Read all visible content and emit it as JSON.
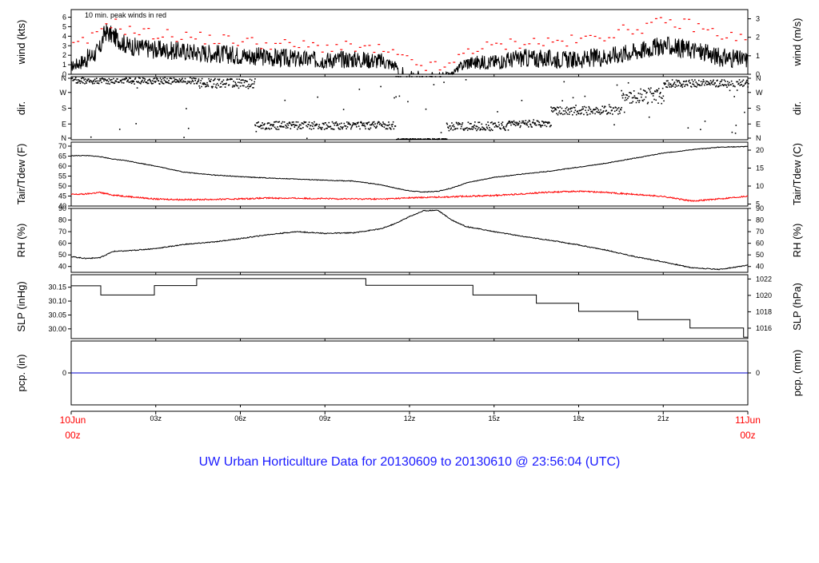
{
  "title": "UW Urban Horticulture Data for 20130609  to  20130610 @ 23:56:04  (UTC)",
  "title_color": "#1a1aff",
  "accent_red": "#ff0000",
  "xaxis": {
    "start_label": [
      "10Jun",
      "00z"
    ],
    "end_label": [
      "11Jun",
      "00z"
    ],
    "ticks": [
      "03z",
      "06z",
      "09z",
      "12z",
      "15z",
      "18z",
      "21z"
    ]
  },
  "chart_data": [
    {
      "type": "line",
      "annotation": "10 min. peak winds in red",
      "ylabel_left": "wind (kts)",
      "ylabel_right": "wind (m/s)",
      "ylim": [
        0,
        6.8
      ],
      "left_ticks": [
        0,
        1,
        2,
        3,
        4,
        5,
        6
      ],
      "right_ticks": [
        0,
        1,
        2,
        3
      ],
      "x_hours": [
        0,
        0.5,
        1,
        1.2,
        1.5,
        2,
        3,
        4,
        5,
        6,
        7,
        8,
        9,
        10,
        11,
        11.5,
        12,
        12.5,
        13,
        13.5,
        14,
        15,
        16,
        17,
        18,
        19,
        20,
        21,
        22,
        23,
        24
      ],
      "series": [
        {
          "name": "wind",
          "color": "#000000",
          "values": [
            0.8,
            1.5,
            2.5,
            4.5,
            4.0,
            3.0,
            2.6,
            2.4,
            2.2,
            2.0,
            1.8,
            1.6,
            1.5,
            1.6,
            1.4,
            0.9,
            0.3,
            0.15,
            0.1,
            0.1,
            1.2,
            1.3,
            1.7,
            1.6,
            1.5,
            1.9,
            2.4,
            3.0,
            2.6,
            1.8,
            1.5
          ]
        },
        {
          "name": "peak",
          "color": "#ff0000",
          "values": [
            2.8,
            3.4,
            4.2,
            5.6,
            5.4,
            4.6,
            4.2,
            4.0,
            3.7,
            3.5,
            3.2,
            3.0,
            2.9,
            2.8,
            2.5,
            2.0,
            1.3,
            0.9,
            0.7,
            0.8,
            2.6,
            2.9,
            3.4,
            3.4,
            3.5,
            4.2,
            4.8,
            5.4,
            5.2,
            4.2,
            3.6
          ]
        }
      ]
    },
    {
      "type": "scatter",
      "ylabel_left": "dir.",
      "ylabel_right": "dir.",
      "ylim": [
        0,
        360
      ],
      "left_ticks": [
        "N",
        "E",
        "S",
        "W",
        "N"
      ],
      "right_ticks": [
        "N",
        "E",
        "S",
        "W",
        "N"
      ],
      "segments": [
        {
          "start": 0.0,
          "end": 4.5,
          "center": 335,
          "spread": 18
        },
        {
          "start": 4.5,
          "end": 6.5,
          "center": 320,
          "spread": 28
        },
        {
          "start": 6.5,
          "end": 11.5,
          "center": 80,
          "spread": 22
        },
        {
          "start": 11.5,
          "end": 13.3,
          "center": 2,
          "spread": 3
        },
        {
          "start": 13.3,
          "end": 15.5,
          "center": 75,
          "spread": 25
        },
        {
          "start": 15.5,
          "end": 17.0,
          "center": 90,
          "spread": 20
        },
        {
          "start": 17.0,
          "end": 19.5,
          "center": 165,
          "spread": 25
        },
        {
          "start": 19.5,
          "end": 21.0,
          "center": 250,
          "spread": 45
        },
        {
          "start": 21.0,
          "end": 24.0,
          "center": 320,
          "spread": 22
        }
      ]
    },
    {
      "type": "line",
      "ylabel_left": "Tair/Tdew (F)",
      "ylabel_right": "Tair/Tdew (C)",
      "ylim": [
        40,
        72
      ],
      "left_ticks": [
        40,
        45,
        50,
        55,
        60,
        65,
        70
      ],
      "right_ticks": [
        5,
        10,
        15,
        20
      ],
      "x_hours": [
        0,
        0.5,
        1,
        1.5,
        2,
        3,
        4,
        5,
        6,
        7,
        8,
        9,
        10,
        11,
        11.5,
        12,
        12.5,
        13,
        13.5,
        14,
        15,
        16,
        17,
        18,
        19,
        20,
        21,
        22,
        23,
        24
      ],
      "series": [
        {
          "name": "Tair",
          "color": "#000000",
          "values": [
            65.2,
            65.3,
            64.8,
            63.5,
            62.6,
            60.0,
            57.0,
            55.6,
            54.7,
            54.0,
            53.5,
            52.9,
            52.5,
            50.6,
            49.0,
            47.6,
            47.0,
            47.4,
            49.0,
            51.5,
            54.4,
            56.0,
            57.5,
            59.5,
            61.5,
            64.0,
            66.5,
            68.2,
            69.5,
            69.8
          ]
        },
        {
          "name": "Tdew",
          "color": "#ff0000",
          "values": [
            45.8,
            46.0,
            46.8,
            45.5,
            44.8,
            43.5,
            43.2,
            43.3,
            43.6,
            44.0,
            43.9,
            43.7,
            43.6,
            43.5,
            43.8,
            44.1,
            44.3,
            44.5,
            44.6,
            44.9,
            45.3,
            46.1,
            47.0,
            47.4,
            46.8,
            45.8,
            44.8,
            42.5,
            43.6,
            45.0
          ]
        }
      ]
    },
    {
      "type": "line",
      "ylabel_left": "RH (%)",
      "ylabel_right": "RH (%)",
      "ylim": [
        35,
        90
      ],
      "left_ticks": [
        40,
        50,
        60,
        70,
        80,
        90
      ],
      "right_ticks": [
        40,
        50,
        60,
        70,
        80,
        90
      ],
      "x_hours": [
        0,
        0.5,
        1,
        1.5,
        2,
        3,
        4,
        5,
        6,
        7,
        8,
        9,
        10,
        11,
        11.5,
        12,
        12.5,
        13,
        13.5,
        14,
        15,
        16,
        17,
        18,
        19,
        20,
        21,
        22,
        23,
        24
      ],
      "series": [
        {
          "name": "RH",
          "color": "#000000",
          "values": [
            48.5,
            47.0,
            47.5,
            53.0,
            53.5,
            55.5,
            59.0,
            61.0,
            64.0,
            67.5,
            70.0,
            68.5,
            69.0,
            72.5,
            77.0,
            83.0,
            88.0,
            88.5,
            80.0,
            74.5,
            70.0,
            66.0,
            62.5,
            58.5,
            54.0,
            48.5,
            44.0,
            39.0,
            37.5,
            41.0
          ]
        }
      ]
    },
    {
      "type": "line",
      "step": true,
      "ylabel_left": "SLP (inHg)",
      "ylabel_right": "SLP (hPa)",
      "ylim": [
        29.965,
        30.195
      ],
      "left_ticks": [
        "30.00",
        "30.05",
        "30.10",
        "30.15"
      ],
      "right_ticks": [
        1016,
        1018,
        1020,
        1022
      ],
      "x_hours": [
        0,
        1.05,
        2.95,
        4.45,
        10.45,
        14.25,
        16.5,
        18.0,
        20.1,
        21.95,
        23.85,
        24
      ],
      "series": [
        {
          "name": "SLP",
          "color": "#000000",
          "values": [
            30.155,
            30.122,
            30.156,
            30.181,
            30.157,
            30.122,
            30.092,
            30.063,
            30.033,
            30.003,
            29.97,
            29.97
          ]
        }
      ]
    },
    {
      "type": "line",
      "ylabel_left": "pcp. (in)",
      "ylabel_right": "pcp. (mm)",
      "ylim": [
        -1,
        1
      ],
      "left_ticks": [
        0
      ],
      "right_ticks": [
        0
      ],
      "x_hours": [
        0,
        24
      ],
      "series": [
        {
          "name": "pcp",
          "color": "#0000cc",
          "values": [
            0,
            0
          ]
        }
      ]
    }
  ]
}
